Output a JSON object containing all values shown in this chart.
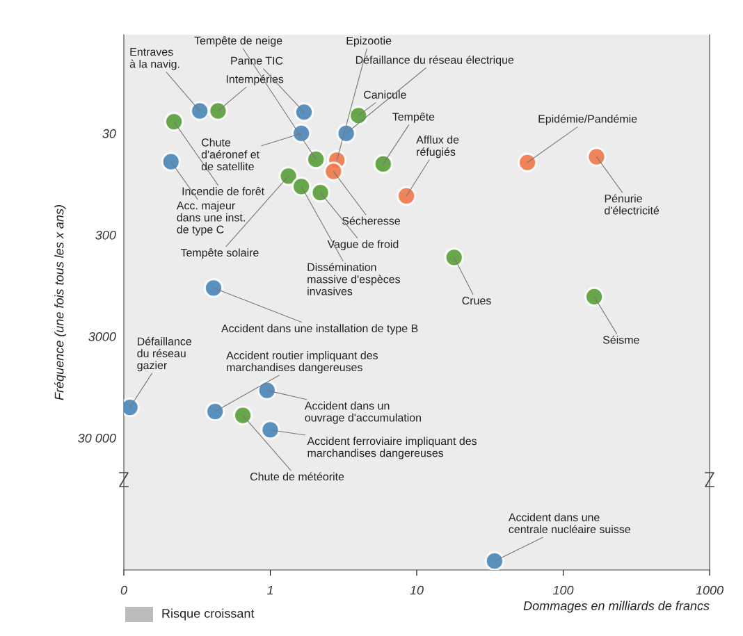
{
  "chart_data": {
    "type": "scatter",
    "xlabel": "Dommages en milliards de francs",
    "ylabel": "Fréquence (une fois tous les x ans)",
    "log": "xy",
    "marker": "circle",
    "grid": false,
    "xlim": [
      0.1,
      1000
    ],
    "xticks": [
      {
        "value": 0.1,
        "label": "0"
      },
      1,
      10,
      100,
      1000
    ],
    "ylim": [
      600000,
      3.2
    ],
    "yticks": [
      30,
      300,
      3000,
      {
        "value": 30000,
        "label": "30 000"
      }
    ],
    "series": [
      {
        "color": "#4a86b8",
        "x": [
          0.33,
          0.21,
          1.7,
          1.63,
          3.3,
          0.41,
          0.11,
          0.42,
          0.95,
          1.0,
          34
        ],
        "values": [
          18,
          57,
          18.5,
          30,
          30,
          1000,
          15000,
          16500,
          10200,
          25000,
          490000
        ]
      },
      {
        "color": "#5a9e3a",
        "x": [
          0.44,
          0.22,
          2.05,
          4.0,
          5.9,
          2.2,
          1.33,
          1.63,
          18,
          163,
          0.65
        ],
        "values": [
          18,
          23,
          54,
          20,
          60,
          115,
          79,
          100,
          500,
          1220,
          18000
        ]
      },
      {
        "color": "#f0784a",
        "x": [
          2.85,
          8.5,
          2.7,
          57,
          169
        ],
        "values": [
          55,
          124,
          71,
          58,
          51
        ]
      }
    ],
    "annotations": [
      {
        "text": "Entraves\nà la navig.",
        "x": 0.33,
        "y": 18
      },
      {
        "text": "Intempéries",
        "x": 0.44,
        "y": 18
      },
      {
        "text": "Incendie de forêt",
        "x": 0.22,
        "y": 23
      },
      {
        "text": "Acc. majeur\ndans une inst.\nde type C",
        "x": 0.21,
        "y": 57
      },
      {
        "text": "Tempête de neige",
        "x": 2.05,
        "y": 54
      },
      {
        "text": "Panne TIC",
        "x": 1.7,
        "y": 18.5
      },
      {
        "text": "Chute\nd'aéronef et\nde satellite",
        "x": 1.63,
        "y": 30
      },
      {
        "text": "Epizootie",
        "x": 2.85,
        "y": 55
      },
      {
        "text": "Défaillance du réseau électrique",
        "x": 3.3,
        "y": 30
      },
      {
        "text": "Canicule",
        "x": 4.0,
        "y": 20
      },
      {
        "text": "Tempête",
        "x": 5.9,
        "y": 60
      },
      {
        "text": "Afflux de\nréfugiés",
        "x": 8.5,
        "y": 124
      },
      {
        "text": "Sécheresse",
        "x": 2.7,
        "y": 71
      },
      {
        "text": "Vague de froid",
        "x": 2.2,
        "y": 115
      },
      {
        "text": "Tempête solaire",
        "x": 1.33,
        "y": 79
      },
      {
        "text": "Dissémination\nmassive d'espèces\ninvasives",
        "x": 1.63,
        "y": 100
      },
      {
        "text": "Epidémie/Pandémie",
        "x": 57,
        "y": 58
      },
      {
        "text": "Pénurie\nd'électricité",
        "x": 169,
        "y": 51
      },
      {
        "text": "Crues",
        "x": 18,
        "y": 500
      },
      {
        "text": "Séisme",
        "x": 163,
        "y": 1220
      },
      {
        "text": "Accident dans une installation de type B",
        "x": 0.41,
        "y": 1000
      },
      {
        "text": "Défaillance\ndu réseau\ngazier",
        "x": 0.11,
        "y": 15000
      },
      {
        "text": "Accident routier impliquant des\nmarchandises dangereuses",
        "x": 0.42,
        "y": 16500
      },
      {
        "text": "Accident dans un\nouvrage d'accumulation",
        "x": 0.95,
        "y": 10200
      },
      {
        "text": "Accident ferroviaire impliquant des\nmarchandises dangereuses",
        "x": 1.0,
        "y": 25000
      },
      {
        "text": "Chute de météorite",
        "x": 0.65,
        "y": 18000
      },
      {
        "text": "Accident dans une\ncentrale nucléaire suisse",
        "x": 34,
        "y": 490000
      },
      "Risque croissant"
    ]
  }
}
